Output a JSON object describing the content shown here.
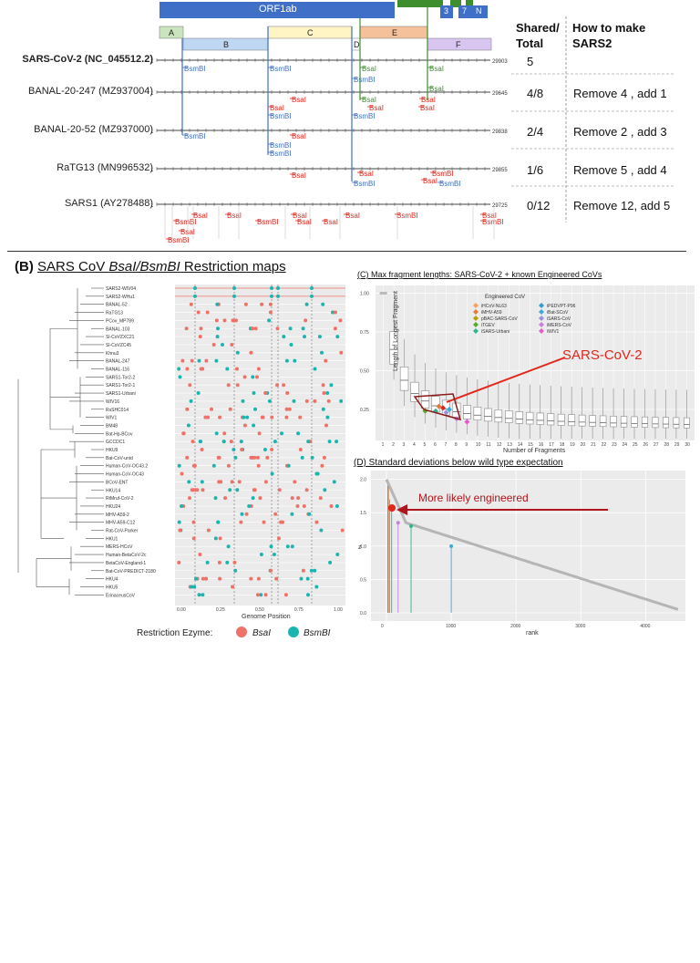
{
  "panelA": {
    "orf_label": "ORF1ab",
    "genes": [
      "3",
      "7",
      "N"
    ],
    "segments": [
      "A",
      "B",
      "C",
      "D",
      "E",
      "F"
    ],
    "rows": [
      {
        "name": "SARS-CoV-2 (NC_045512.2)",
        "start": "1",
        "end": "29903",
        "bold": true,
        "shared": "5",
        "how": ""
      },
      {
        "name": "BANAL-20-247 (MZ937004)",
        "start": "1",
        "end": "29645",
        "bold": false,
        "shared": "4/8",
        "how": "Remove 4 , add 1"
      },
      {
        "name": "BANAL-20-52 (MZ937000)",
        "start": "1",
        "end": "29838",
        "bold": false,
        "shared": "2/4",
        "how": "Remove 2 , add 3"
      },
      {
        "name": "RaTG13  (MN996532)",
        "start": "1",
        "end": "29855",
        "bold": false,
        "shared": "1/6",
        "how": "Remove 5 , add 4"
      },
      {
        "name": "SARS1  (AY278488)",
        "start": "1",
        "end": "29725",
        "bold": false,
        "shared": "0/12",
        "how": "Remove 12, add 5"
      }
    ],
    "header_shared": "Shared/\nTotal",
    "header_how": "How to make\nSARS2",
    "enzyme_bsa": "BsaI",
    "enzyme_bsm": "BsmBI"
  },
  "panelB": {
    "title_prefix": "(B)",
    "title_main": "SARS CoV ",
    "title_italic": "BsaI/BsmBI",
    "title_suffix": " Restriction maps",
    "taxa": [
      "SARS2-WIV04",
      "SARS2-WHu1",
      "BANAL-52",
      "RaTG13",
      "PCov_MP789",
      "BANAL-103",
      "Sl-CoVZXC21",
      "Sl-CoVZC45",
      "Khnu3",
      "BANAL-247",
      "BANAL-116",
      "SARS1-Tor2-2",
      "SARS1-Tor2-1",
      "SARS1-Urbani",
      "WIV16",
      "RsSHC014",
      "WIV1",
      "BM48",
      "Bat-Hp-BCov",
      "GCCDC1",
      "HKU9",
      "Bat-CoV-unid",
      "Human-CoV-OC43.2",
      "Human-CoV-OC43",
      "BCoV-ENT",
      "HKU14",
      "RtMruf-CoV-2",
      "HKU24",
      "MHV-A59-2",
      "MHV-A59-C12",
      "Rat-CoV-Parker",
      "HKU1",
      "MERS-HCoV",
      "Human-BetaCoV-2c",
      "BetaCoV-England-1",
      "Bat-CoV-PREDICT-2180",
      "HKU4",
      "HKU5",
      "ErinaceusCoV"
    ],
    "xaxis_ticks": [
      "0.00",
      "0.25",
      "0.50",
      "0.75",
      "1.00"
    ],
    "xlabel": "Genome Position",
    "legend_label": "Restriction Ezyme:",
    "legend_bsa": "BsaI",
    "legend_bsm": "BsmBI",
    "colors": {
      "bsa": "#F07167",
      "bsm": "#1BB5B0"
    }
  },
  "panelC": {
    "title": "(C) Max fragment lengths: SARS-CoV-2 + known Engineered CoVs",
    "ylabel": "Length of Longest Fragment",
    "xlabel": "Number of Fragments",
    "yticks": [
      "1.00",
      "0.75",
      "0.50",
      "0.25"
    ],
    "xticks": [
      "1",
      "2",
      "3",
      "4",
      "5",
      "6",
      "7",
      "8",
      "9",
      "10",
      "11",
      "12",
      "13",
      "14",
      "15",
      "16",
      "17",
      "18",
      "19",
      "20",
      "21",
      "22",
      "23",
      "24",
      "25",
      "26",
      "27",
      "28",
      "29",
      "30"
    ],
    "legend_title": "Engineered CoV",
    "legend_items": [
      {
        "name": "iHCoV-NL63",
        "color": "#F4A261"
      },
      {
        "name": "iPEDVPT-P96",
        "color": "#2B9ED8"
      },
      {
        "name": "iMHV-A59",
        "color": "#E07B39"
      },
      {
        "name": "iBat-SCoV",
        "color": "#3FA7D6"
      },
      {
        "name": "pBAC-SARS-CoV",
        "color": "#B5A000"
      },
      {
        "name": "iSARS-CoV",
        "color": "#9A8FD8"
      },
      {
        "name": "iTGEV",
        "color": "#5BA92C"
      },
      {
        "name": "iMERS-CoV",
        "color": "#C67FE0"
      },
      {
        "name": "iSARS-Urbani",
        "color": "#2BB58D"
      },
      {
        "name": "iWIV1",
        "color": "#E75AC9"
      }
    ],
    "annotation": "SARS-CoV-2"
  },
  "panelD": {
    "title": "(D) Standard deviations below wild type expectation",
    "ylabel": "z",
    "xlabel": "rank",
    "yticks": [
      "2.0",
      "1.5",
      "1.0",
      "0.5",
      "0.0"
    ],
    "xticks": [
      "0",
      "1000",
      "2000",
      "3000",
      "4000"
    ],
    "annotation": "More likely engineered"
  }
}
